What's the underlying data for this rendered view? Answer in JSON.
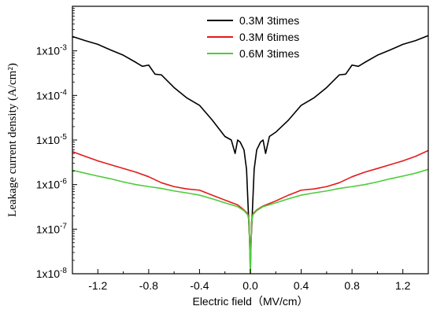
{
  "chart_data": {
    "type": "line",
    "xlabel": "Electric field（MV/cm）",
    "ylabel": "Leakage current density (A/cm²)",
    "xlim": [
      -1.4,
      1.4
    ],
    "ylim": [
      1e-08,
      0.01
    ],
    "y_scale": "log",
    "x_ticks": [
      "-1.2",
      "-0.8",
      "-0.4",
      "0.0",
      "0.4",
      "0.8",
      "1.2"
    ],
    "x_tick_values": [
      -1.2,
      -0.8,
      -0.4,
      0.0,
      0.4,
      0.8,
      1.2
    ],
    "y_ticks": [
      {
        "base": "1x10",
        "exp": "-8",
        "value": 1e-08
      },
      {
        "base": "1x10",
        "exp": "-7",
        "value": 1e-07
      },
      {
        "base": "1x10",
        "exp": "-6",
        "value": 1e-06
      },
      {
        "base": "1x10",
        "exp": "-5",
        "value": 1e-05
      },
      {
        "base": "1x10",
        "exp": "-4",
        "value": 0.0001
      },
      {
        "base": "1x10",
        "exp": "-3",
        "value": 0.001
      }
    ],
    "legend_position": "top-right",
    "grid": false,
    "series": [
      {
        "name": "0.3M 3times",
        "color": "#000000",
        "x": [
          -1.4,
          -1.3,
          -1.2,
          -1.1,
          -1.0,
          -0.9,
          -0.85,
          -0.8,
          -0.75,
          -0.7,
          -0.6,
          -0.5,
          -0.4,
          -0.3,
          -0.2,
          -0.15,
          -0.12,
          -0.1,
          -0.08,
          -0.05,
          -0.03,
          -0.01,
          0.0,
          0.01,
          0.03,
          0.05,
          0.08,
          0.1,
          0.12,
          0.15,
          0.2,
          0.3,
          0.4,
          0.5,
          0.6,
          0.7,
          0.75,
          0.8,
          0.85,
          0.9,
          1.0,
          1.1,
          1.2,
          1.3,
          1.4
        ],
        "y": [
          0.0021,
          0.0017,
          0.0014,
          0.00105,
          0.0008,
          0.00055,
          0.00045,
          0.00048,
          0.0003,
          0.00029,
          0.00015,
          8.8e-05,
          6e-05,
          2.8e-05,
          1.2e-05,
          1e-05,
          5e-06,
          1e-05,
          9e-06,
          6e-06,
          2.2e-06,
          1e-07,
          2.5e-08,
          1e-07,
          2.2e-06,
          6e-06,
          9e-06,
          1e-05,
          5e-06,
          1.2e-05,
          1.5e-05,
          2.8e-05,
          6e-05,
          8.8e-05,
          0.00015,
          0.00029,
          0.0003,
          0.00048,
          0.00045,
          0.00055,
          0.0008,
          0.00105,
          0.0014,
          0.0017,
          0.0022
        ]
      },
      {
        "name": "0.3M 6times",
        "color": "#e41a1c",
        "x": [
          -1.4,
          -1.3,
          -1.2,
          -1.1,
          -1.0,
          -0.9,
          -0.8,
          -0.7,
          -0.6,
          -0.5,
          -0.4,
          -0.3,
          -0.2,
          -0.1,
          -0.05,
          -0.02,
          -0.01,
          0.0,
          0.01,
          0.02,
          0.05,
          0.1,
          0.2,
          0.3,
          0.4,
          0.5,
          0.6,
          0.7,
          0.8,
          0.9,
          1.0,
          1.1,
          1.2,
          1.3,
          1.4
        ],
        "y": [
          5.5e-06,
          4.3e-06,
          3.4e-06,
          2.8e-06,
          2.3e-06,
          1.9e-06,
          1.5e-06,
          1.1e-06,
          9e-07,
          8e-07,
          7.5e-07,
          5.8e-07,
          4.5e-07,
          3.5e-07,
          2.7e-07,
          2.2e-07,
          1.5e-07,
          1e-08,
          1.5e-07,
          2.2e-07,
          2.7e-07,
          3.3e-07,
          4.3e-07,
          5.8e-07,
          7.5e-07,
          8e-07,
          9e-07,
          1.1e-06,
          1.5e-06,
          1.9e-06,
          2.3e-06,
          2.8e-06,
          3.4e-06,
          4.3e-06,
          5.8e-06
        ]
      },
      {
        "name": "0.6M 3times",
        "color": "#4dcc3a",
        "x": [
          -1.4,
          -1.3,
          -1.2,
          -1.1,
          -1.0,
          -0.9,
          -0.8,
          -0.7,
          -0.6,
          -0.5,
          -0.4,
          -0.3,
          -0.2,
          -0.1,
          -0.05,
          -0.02,
          -0.01,
          0.0,
          0.01,
          0.02,
          0.05,
          0.1,
          0.2,
          0.3,
          0.4,
          0.5,
          0.6,
          0.7,
          0.8,
          0.9,
          1.0,
          1.1,
          1.2,
          1.3,
          1.4
        ],
        "y": [
          2.1e-06,
          1.8e-06,
          1.55e-06,
          1.35e-06,
          1.15e-06,
          1e-06,
          9e-07,
          8.2e-07,
          7.2e-07,
          6.5e-07,
          5.8e-07,
          4.8e-07,
          3.9e-07,
          3.2e-07,
          2.6e-07,
          2.1e-07,
          1.4e-07,
          1e-08,
          1.4e-07,
          2.1e-07,
          2.6e-07,
          3.2e-07,
          3.9e-07,
          4.8e-07,
          5.8e-07,
          6.5e-07,
          7.2e-07,
          8.2e-07,
          9e-07,
          1e-06,
          1.15e-06,
          1.35e-06,
          1.55e-06,
          1.8e-06,
          2.2e-06
        ]
      }
    ]
  }
}
